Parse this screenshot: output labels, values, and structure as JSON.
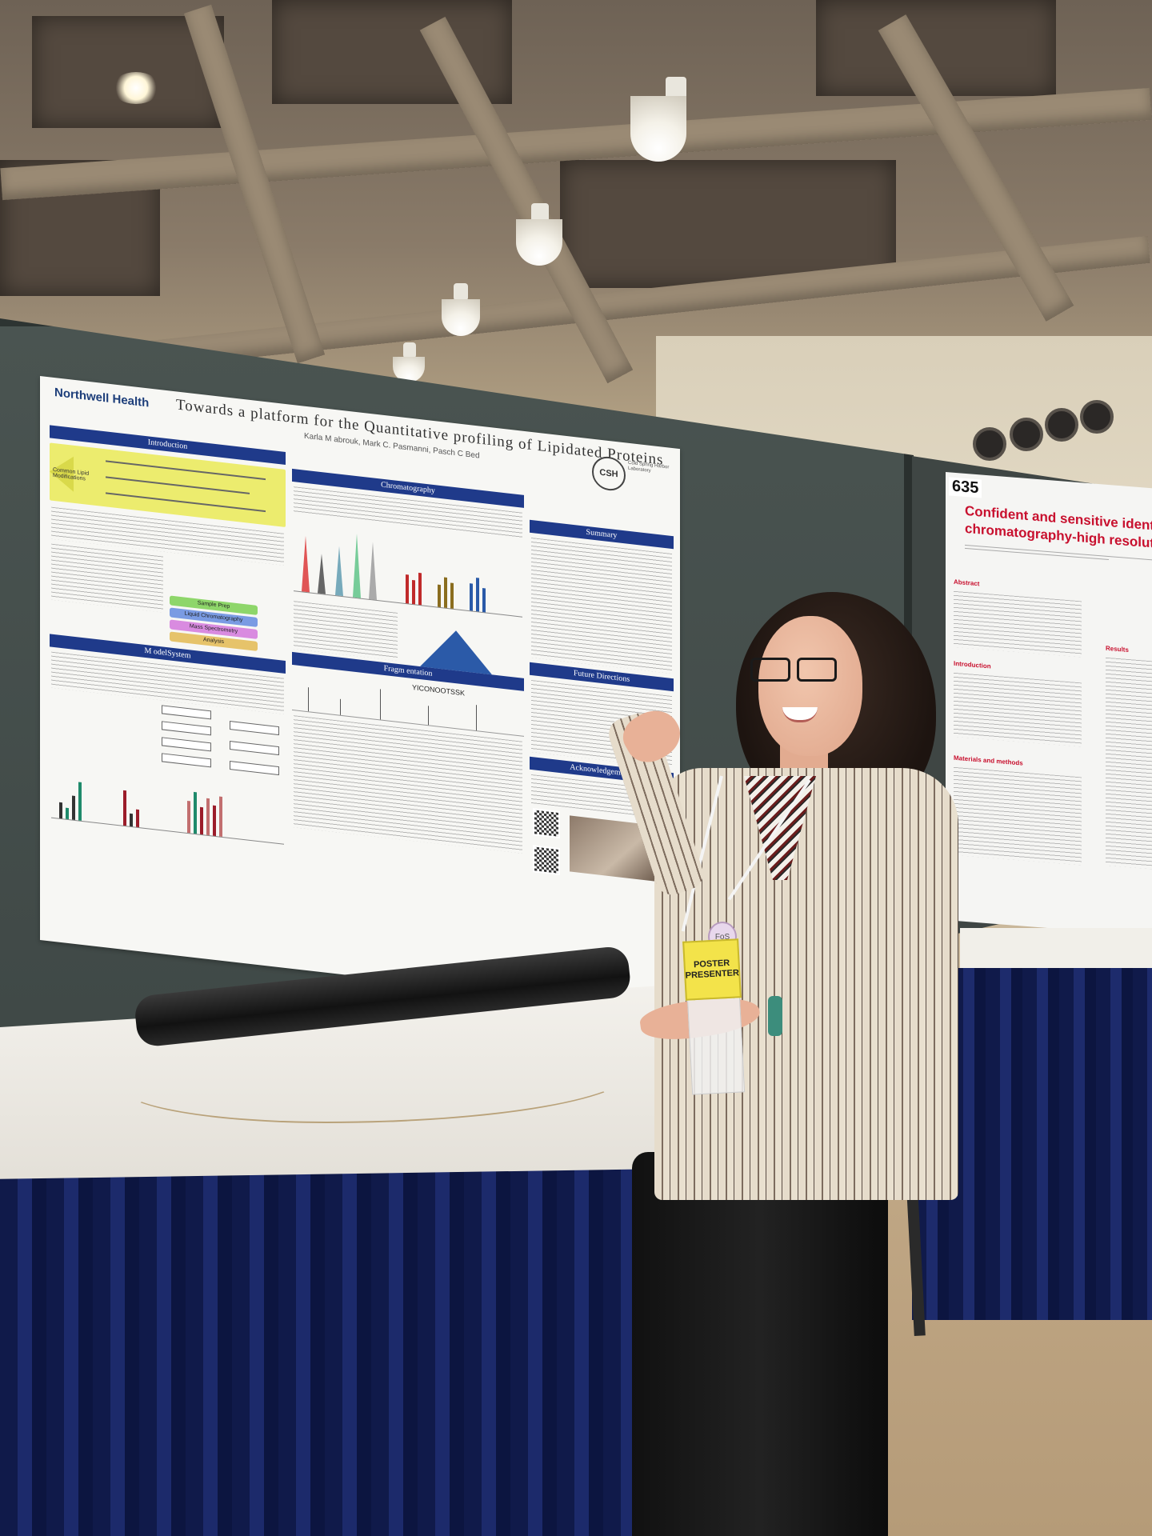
{
  "main_poster": {
    "brand": "Northwell Health",
    "title": "Towards a platform for the Quantitative profiling of Lipidated Proteins",
    "authors": "Karla M abrouk, Mark C. Pasmanni, Pasch C Bed",
    "logo": "CSH",
    "logo_caption": "Cold Spring Harbor Laboratory",
    "sections": {
      "introduction": "Introduction",
      "model_system": "M odelSystem",
      "chromatography": "Chromatography",
      "fragmentation": "Fragm entation",
      "summary": "Summary",
      "future_directions": "Future Directions",
      "acknowledgements": "Acknowledgements"
    },
    "workflow_steps": [
      "Sample Prep",
      "Liquid Chromatography",
      "Mass Spectrometry",
      "Analysis"
    ],
    "workflow_colors": [
      "#8ed66a",
      "#7a9be3",
      "#d98be0",
      "#e6c36a"
    ],
    "intro_label": "Common Lipid Modifications",
    "peptide_label": "YICONOOTSSK"
  },
  "right_poster": {
    "number": "635",
    "title_line1": "Confident and sensitive identificatio",
    "title_line2": "chromatography-high resolution acc",
    "sections": [
      "Abstract",
      "Introduction",
      "Materials and methods",
      "Results"
    ]
  },
  "badge": {
    "line1": "POSTER",
    "line2": "PRESENTER",
    "pin": "FoS"
  }
}
